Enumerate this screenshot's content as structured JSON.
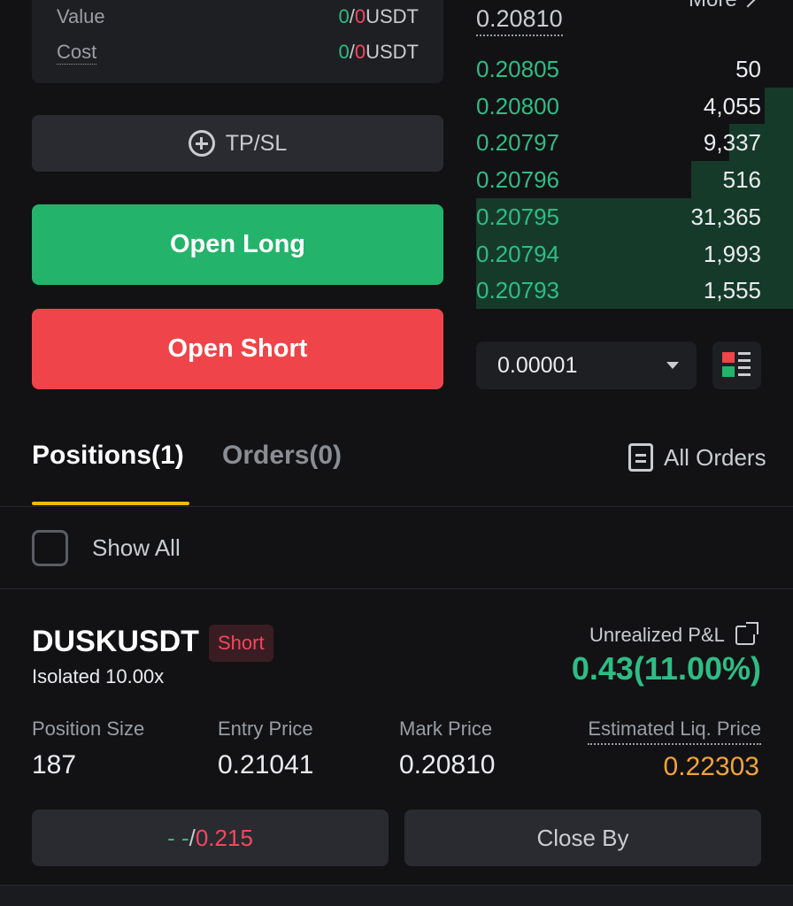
{
  "summary": {
    "value_label": "Value",
    "value_long": "0",
    "value_short": "0",
    "value_unit": "USDT",
    "cost_label": "Cost",
    "cost_long": "0",
    "cost_short": "0",
    "cost_unit": "USDT",
    "slash": "/"
  },
  "actions": {
    "tpsl_label": "TP/SL",
    "open_long_label": "Open Long",
    "open_short_label": "Open Short"
  },
  "order_book": {
    "last_price": "0.20810",
    "more_label": "More",
    "rows": [
      {
        "price": "0.20805",
        "qty": "50",
        "depth": 0.0
      },
      {
        "price": "0.20800",
        "qty": "4,055",
        "depth": 0.09
      },
      {
        "price": "0.20797",
        "qty": "9,337",
        "depth": 0.2
      },
      {
        "price": "0.20796",
        "qty": "516",
        "depth": 0.32
      },
      {
        "price": "0.20795",
        "qty": "31,365",
        "depth": 1.0
      },
      {
        "price": "0.20794",
        "qty": "1,993",
        "depth": 1.0
      },
      {
        "price": "0.20793",
        "qty": "1,555",
        "depth": 1.0
      }
    ],
    "tick_size": "0.00001"
  },
  "tabs": {
    "positions": "Positions(1)",
    "orders": "Orders(0)",
    "all_orders": "All Orders"
  },
  "filter": {
    "show_all_label": "Show All",
    "checked": false
  },
  "position": {
    "symbol": "DUSKUSDT",
    "side": "Short",
    "margin_mode": "Isolated 10.00x",
    "upnl_label": "Unrealized P&L",
    "upnl_value": "0.43(11.00%)",
    "size_label": "Position Size",
    "size_value": "187",
    "entry_label": "Entry Price",
    "entry_value": "0.21041",
    "mark_label": "Mark Price",
    "mark_value": "0.20810",
    "liq_label": "Estimated Liq. Price",
    "liq_value": "0.22303",
    "tp_value": "- -",
    "sl_value": "0.215",
    "tpsl_sep": "/",
    "close_by_label": "Close By"
  },
  "colors": {
    "long": "#24b36b",
    "short": "#ef454a",
    "accent": "#f0b90b",
    "liq": "#f0a33a"
  }
}
